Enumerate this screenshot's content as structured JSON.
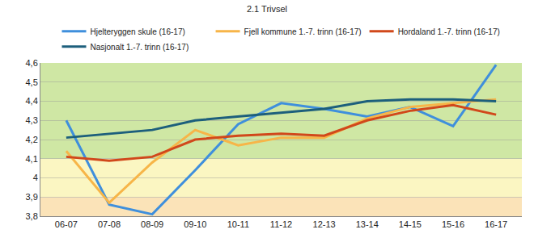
{
  "chart_data": {
    "type": "line",
    "title": "2.1 Trivsel",
    "categories": [
      "06-07",
      "07-08",
      "08-09",
      "09-10",
      "10-11",
      "11-12",
      "12-13",
      "13-14",
      "14-15",
      "15-16",
      "16-17"
    ],
    "series": [
      {
        "name": "Hjelteryggen skule (16-17)",
        "color": "#3f8fdc",
        "values": [
          4.3,
          3.86,
          3.81,
          4.04,
          4.28,
          4.39,
          4.36,
          4.32,
          4.37,
          4.27,
          4.59
        ]
      },
      {
        "name": "Fjell kommune 1.-7. trinn (16-17)",
        "color": "#f7b548",
        "values": [
          4.14,
          3.87,
          4.08,
          4.25,
          4.17,
          4.21,
          4.21,
          4.31,
          4.37,
          4.39,
          4.41
        ]
      },
      {
        "name": "Hordaland 1.-7. trinn (16-17)",
        "color": "#d1481b",
        "values": [
          4.11,
          4.09,
          4.11,
          4.2,
          4.22,
          4.23,
          4.22,
          4.3,
          4.35,
          4.38,
          4.33
        ]
      },
      {
        "name": "Nasjonalt 1.-7. trinn (16-17)",
        "color": "#1d5f7c",
        "values": [
          4.21,
          4.23,
          4.25,
          4.3,
          4.32,
          4.34,
          4.36,
          4.4,
          4.41,
          4.41,
          4.4
        ]
      }
    ],
    "ylim": [
      3.8,
      4.6
    ],
    "yticks": [
      {
        "value": 3.8,
        "label": "3,8"
      },
      {
        "value": 3.9,
        "label": "3,9"
      },
      4,
      {
        "value": 4.1,
        "label": "4,1"
      },
      {
        "value": 4.2,
        "label": "4,2"
      },
      {
        "value": 4.3,
        "label": "4,3"
      },
      {
        "value": 4.4,
        "label": "4,4"
      },
      {
        "value": 4.5,
        "label": "4,5"
      },
      {
        "value": 4.6,
        "label": "4,6"
      }
    ],
    "bands": [
      {
        "from": 3.8,
        "to": 3.9,
        "color": "#fbe3b8"
      },
      {
        "from": 3.9,
        "to": 4.1,
        "color": "#fbf6c2"
      },
      {
        "from": 4.1,
        "to": 4.6,
        "color": "#cfe7a4"
      }
    ],
    "grid": true,
    "legend": "top"
  }
}
